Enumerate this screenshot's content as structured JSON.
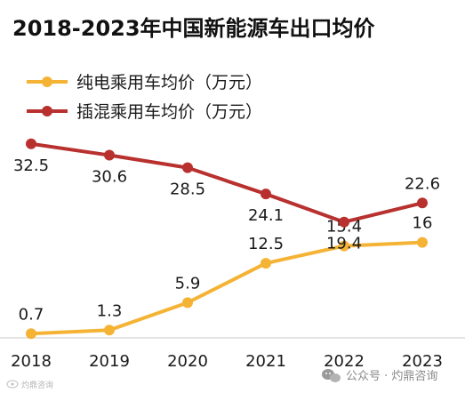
{
  "colors": {
    "series_pure_ev": "#F5B335",
    "series_phev": "#B8312F",
    "axis": "#c9c9c9",
    "text": "#1a1a1a"
  },
  "watermark": {
    "right_text": "公众号 · 灼鼎咨询",
    "right_icon": "wechat-icon",
    "left_text": "灼鼎咨询"
  },
  "chart_data": {
    "type": "line",
    "title": "2018-2023年中国新能源车出口均价",
    "xlabel": "",
    "ylabel": "",
    "grid": false,
    "legend_position": "top-left",
    "categories": [
      "2018",
      "2019",
      "2020",
      "2021",
      "2022",
      "2023"
    ],
    "ylim": [
      0,
      35
    ],
    "series": [
      {
        "name": "纯电乘用车均价（万元）",
        "values": [
          0.7,
          1.3,
          5.9,
          12.5,
          15.4,
          16
        ],
        "labels": [
          "0.7",
          "1.3",
          "5.9",
          "12.5",
          "15.4",
          "16"
        ]
      },
      {
        "name": "插混乘用车均价（万元）",
        "values": [
          32.5,
          30.6,
          28.5,
          24.1,
          19.4,
          22.6
        ],
        "labels": [
          "32.5",
          "30.6",
          "28.5",
          "24.1",
          "19.4",
          "22.6"
        ]
      }
    ]
  }
}
